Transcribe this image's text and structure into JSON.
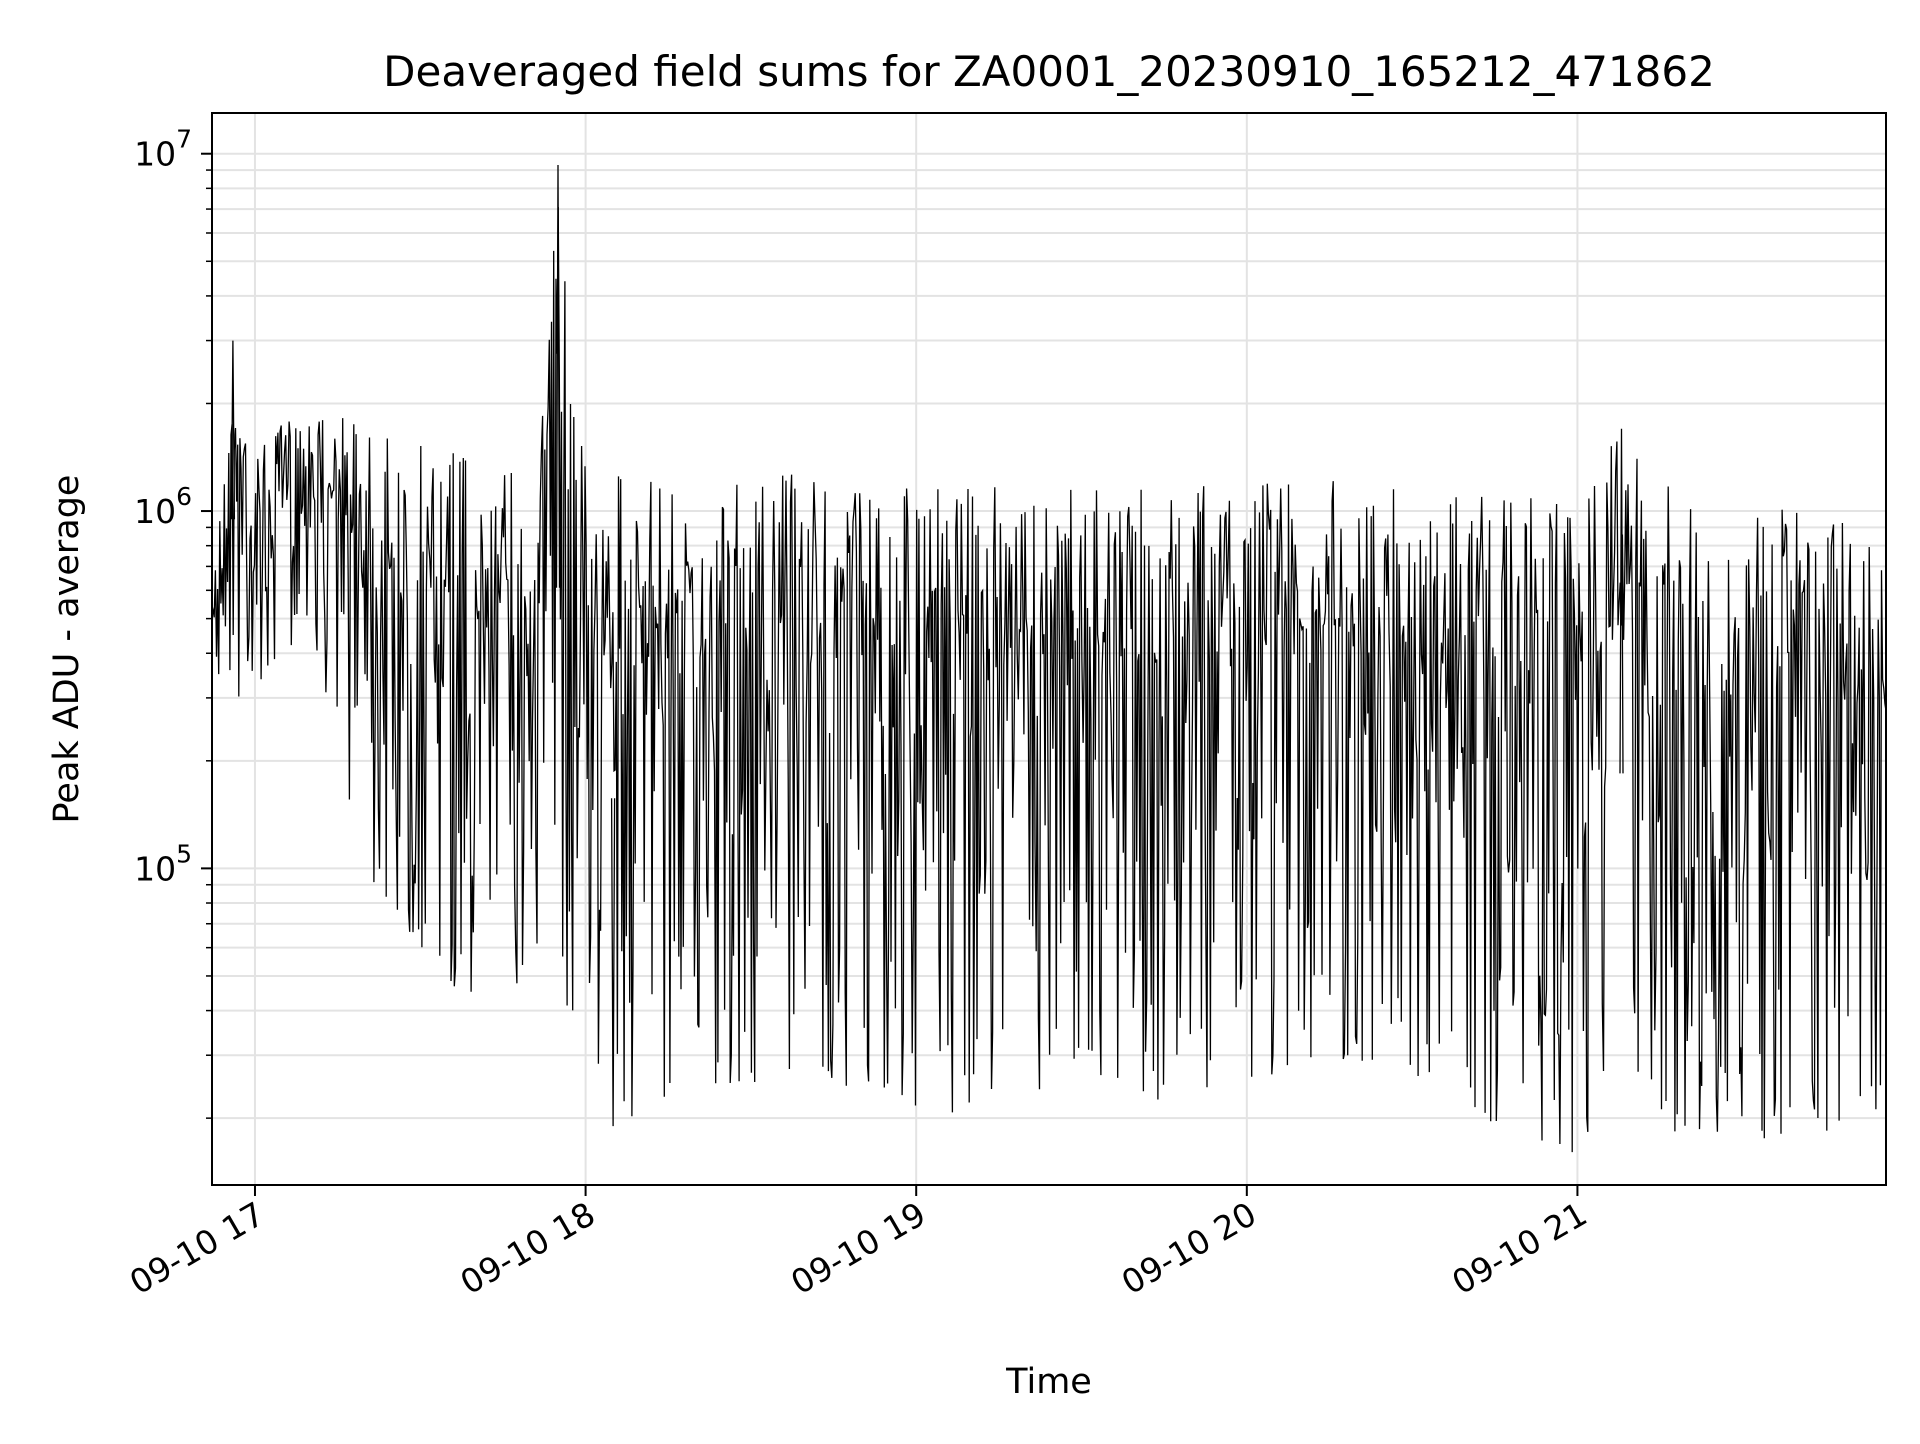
{
  "chart_data": {
    "type": "line",
    "title": "Deaveraged field sums for ZA0001_20230910_165212_471862",
    "xlabel": "Time",
    "ylabel": "Peak ADU - average",
    "yscale": "log",
    "ylim": [
      13000,
      13000000
    ],
    "xlim": [
      "2023-09-10 16:52:12",
      "2023-09-10 21:56:00"
    ],
    "grid": true,
    "line_color": "#000000",
    "grid_color": "#e3e3e3",
    "x_ticks": [
      {
        "label": "09-10 17",
        "time": "2023-09-10 17:00:00"
      },
      {
        "label": "09-10 18",
        "time": "2023-09-10 18:00:00"
      },
      {
        "label": "09-10 19",
        "time": "2023-09-10 19:00:00"
      },
      {
        "label": "09-10 20",
        "time": "2023-09-10 20:00:00"
      },
      {
        "label": "09-10 21",
        "time": "2023-09-10 21:00:00"
      }
    ],
    "y_ticks": [
      {
        "base": "10",
        "exp": "5",
        "value": 100000
      },
      {
        "base": "10",
        "exp": "6",
        "value": 1000000
      },
      {
        "base": "10",
        "exp": "7",
        "value": 10000000
      }
    ],
    "series_envelope": [
      {
        "time": "2023-09-10 16:52:12",
        "low": 350000,
        "high": 550000
      },
      {
        "time": "2023-09-10 16:56:00",
        "low": 300000,
        "high": 3000000
      },
      {
        "time": "2023-09-10 17:00:00",
        "low": 300000,
        "high": 1500000
      },
      {
        "time": "2023-09-10 17:10:00",
        "low": 500000,
        "high": 2100000
      },
      {
        "time": "2023-09-10 17:20:00",
        "low": 95000,
        "high": 1800000
      },
      {
        "time": "2023-09-10 17:30:00",
        "low": 60000,
        "high": 1600000
      },
      {
        "time": "2023-09-10 17:40:00",
        "low": 40000,
        "high": 1600000
      },
      {
        "time": "2023-09-10 17:50:00",
        "low": 50000,
        "high": 1400000
      },
      {
        "time": "2023-09-10 17:55:00",
        "low": 40000,
        "high": 9300000
      },
      {
        "time": "2023-09-10 18:00:00",
        "low": 40000,
        "high": 1300000
      },
      {
        "time": "2023-09-10 18:05:00",
        "low": 19000,
        "high": 1300000
      },
      {
        "time": "2023-09-10 18:20:00",
        "low": 25000,
        "high": 1200000
      },
      {
        "time": "2023-09-10 18:40:00",
        "low": 25000,
        "high": 1300000
      },
      {
        "time": "2023-09-10 19:00:00",
        "low": 20000,
        "high": 1200000
      },
      {
        "time": "2023-09-10 19:20:00",
        "low": 22000,
        "high": 1200000
      },
      {
        "time": "2023-09-10 19:40:00",
        "low": 22000,
        "high": 1200000
      },
      {
        "time": "2023-09-10 20:00:00",
        "low": 25000,
        "high": 1300000
      },
      {
        "time": "2023-09-10 20:15:00",
        "low": 30000,
        "high": 1400000
      },
      {
        "time": "2023-09-10 20:30:00",
        "low": 25000,
        "high": 1100000
      },
      {
        "time": "2023-09-10 20:45:00",
        "low": 17000,
        "high": 1100000
      },
      {
        "time": "2023-09-10 21:00:00",
        "low": 16000,
        "high": 1100000
      },
      {
        "time": "2023-09-10 21:08:00",
        "low": 20000,
        "high": 1700000
      },
      {
        "time": "2023-09-10 21:20:00",
        "low": 18000,
        "high": 1100000
      },
      {
        "time": "2023-09-10 21:40:00",
        "low": 17000,
        "high": 1000000
      },
      {
        "time": "2023-09-10 21:56:00",
        "low": 16000,
        "high": 950000
      }
    ]
  }
}
